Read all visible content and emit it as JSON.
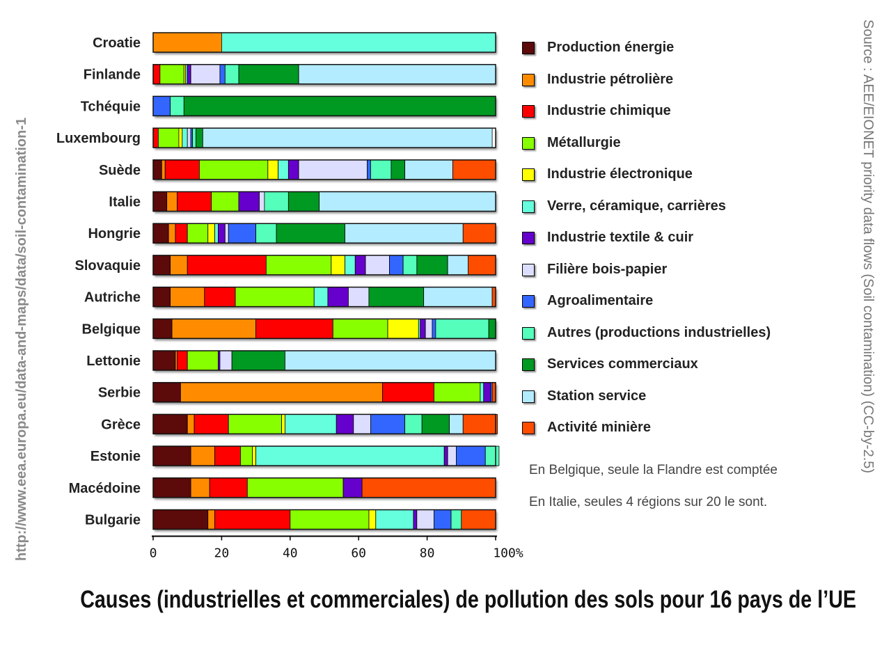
{
  "title": "Causes (industrielles et commerciales) de pollution des sols pour 16 pays de l’UE",
  "source_text": "Source : AEE/EIONET priority data flows (Soil contamination) (CC-by-2.5)",
  "url_text": "http://www.eea.europa.eu/data-and-maps/data/soil-contamination-1",
  "notes": [
    "En Belgique, seule la Flandre est comptée",
    "En Italie, seules 4 régions sur 20 le sont."
  ],
  "chart_data": {
    "type": "bar",
    "orientation": "horizontal",
    "stacked": true,
    "percent": true,
    "xlim": [
      0,
      100
    ],
    "xticks": [
      "0",
      "20",
      "40",
      "60",
      "80",
      "100%"
    ],
    "categories": [
      "Croatie",
      "Finlande",
      "Tchéquie",
      "Luxembourg",
      "Suède",
      "Italie",
      "Hongrie",
      "Slovaquie",
      "Autriche",
      "Belgique",
      "Lettonie",
      "Serbie",
      "Grèce",
      "Estonie",
      "Macédoine",
      "Bulgarie"
    ],
    "series": [
      {
        "name": "Production énergie",
        "color": "#5c0a0a",
        "values": [
          0,
          0,
          0,
          0,
          2.5,
          4,
          4.5,
          5,
          5,
          5.5,
          6.5,
          8,
          10,
          11,
          11,
          16
        ]
      },
      {
        "name": "Industrie pétrolière",
        "color": "#ff8c00",
        "values": [
          20,
          0,
          0,
          0,
          1,
          3,
          2,
          5,
          10,
          24.5,
          0.5,
          59,
          2,
          7,
          5.5,
          2
        ]
      },
      {
        "name": "Industrie chimique",
        "color": "#ff0000",
        "values": [
          0,
          2,
          0,
          1.5,
          10,
          10,
          3.5,
          23,
          9,
          22.5,
          3,
          15,
          10,
          7.5,
          11,
          22
        ]
      },
      {
        "name": "Métallurgie",
        "color": "#88ff00",
        "values": [
          0,
          7,
          0,
          6,
          20,
          8,
          6,
          19,
          23,
          16,
          9,
          13.5,
          15.5,
          3.5,
          28,
          23
        ]
      },
      {
        "name": "Industrie électronique",
        "color": "#ffff00",
        "values": [
          0,
          0.5,
          0,
          1,
          3,
          0,
          2,
          4,
          0,
          9,
          0,
          0,
          1,
          1,
          0,
          2
        ]
      },
      {
        "name": "Verre, céramique, carrières",
        "color": "#66ffdd",
        "values": [
          80,
          0.5,
          0,
          1.5,
          3,
          0,
          1,
          3,
          4,
          0.5,
          0,
          1,
          15,
          55,
          0,
          11
        ]
      },
      {
        "name": "Industrie textile & cuir",
        "color": "#6600cc",
        "values": [
          0,
          1,
          0,
          0,
          3,
          6,
          2,
          3,
          6,
          1.5,
          0.5,
          2,
          5,
          1,
          5.5,
          1
        ]
      },
      {
        "name": "Filière bois-papier",
        "color": "#ddddff",
        "values": [
          0,
          8.5,
          0,
          1,
          20,
          1.5,
          1,
          7,
          6,
          2,
          3.5,
          0,
          5,
          2.5,
          0,
          5
        ]
      },
      {
        "name": "Agroalimentaire",
        "color": "#3366ff",
        "values": [
          0,
          1.5,
          5,
          0.5,
          1,
          0,
          8,
          4,
          0,
          1,
          0,
          0.5,
          10,
          8.5,
          0,
          5
        ]
      },
      {
        "name": "Autres (productions industrielles)",
        "color": "#55ffbb",
        "values": [
          0,
          4,
          4,
          1,
          6,
          7,
          6,
          4,
          0,
          15.5,
          0,
          0,
          5,
          4,
          0,
          3
        ]
      },
      {
        "name": "Services commerciaux",
        "color": "#009922",
        "values": [
          0,
          17.5,
          91,
          2,
          4,
          9,
          20,
          9,
          16,
          2,
          15.5,
          0,
          8,
          0,
          0,
          0
        ]
      },
      {
        "name": "Station service",
        "color": "#b3ecff",
        "values": [
          0,
          57.5,
          0,
          84.5,
          14,
          51.5,
          34.5,
          6,
          20,
          0,
          61.5,
          0,
          4,
          0,
          0,
          0
        ]
      },
      {
        "name": "Activité minière",
        "color": "#ff4d00",
        "values": [
          0,
          0,
          0,
          0,
          12.5,
          0,
          9.5,
          8,
          1,
          0,
          0,
          1,
          10,
          0,
          39,
          10
        ]
      }
    ]
  }
}
